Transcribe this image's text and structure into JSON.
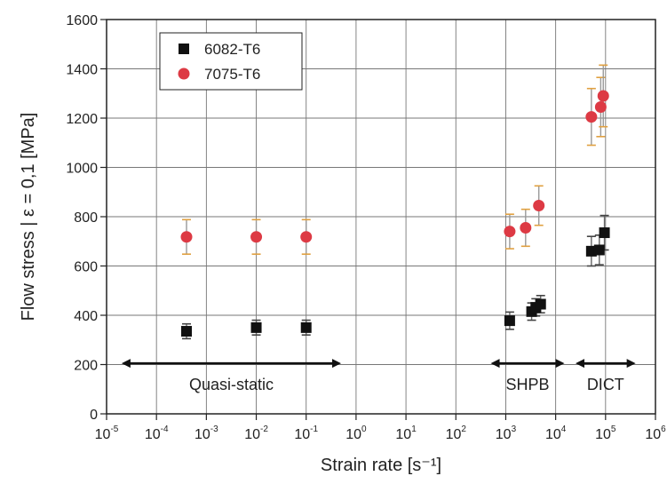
{
  "chart_data": {
    "type": "scatter",
    "title": "",
    "xlabel": "Strain rate [s⁻¹]",
    "ylabel": "Flow stress | ε = 0,1 [MPa]",
    "xscale": "log",
    "xlim_exp": [
      -5,
      6
    ],
    "ylim": [
      0,
      1600
    ],
    "grid": true,
    "legend_position": "top-left",
    "x_tick_labels": [
      {
        "base": "10",
        "exp": "-5"
      },
      {
        "base": "10",
        "exp": "-4"
      },
      {
        "base": "10",
        "exp": "-3"
      },
      {
        "base": "10",
        "exp": "-2"
      },
      {
        "base": "10",
        "exp": "-1"
      },
      {
        "base": "10",
        "exp": "0"
      },
      {
        "base": "10",
        "exp": "1"
      },
      {
        "base": "10",
        "exp": "2"
      },
      {
        "base": "10",
        "exp": "3"
      },
      {
        "base": "10",
        "exp": "4"
      },
      {
        "base": "10",
        "exp": "5"
      },
      {
        "base": "10",
        "exp": "6"
      }
    ],
    "y_ticks": [
      0,
      200,
      400,
      600,
      800,
      1000,
      1200,
      1400,
      1600
    ],
    "series": [
      {
        "name": "6082-T6",
        "color": "#111111",
        "marker": "square",
        "points": [
          {
            "x": 0.0004,
            "y": 335,
            "err": 30
          },
          {
            "x": 0.01,
            "y": 350,
            "err": 30
          },
          {
            "x": 0.1,
            "y": 350,
            "err": 30
          },
          {
            "x": 1200,
            "y": 378,
            "err": 35
          },
          {
            "x": 3300,
            "y": 415,
            "err": 35
          },
          {
            "x": 4000,
            "y": 432,
            "err": 35
          },
          {
            "x": 5000,
            "y": 445,
            "err": 35
          },
          {
            "x": 52000,
            "y": 660,
            "err": 60
          },
          {
            "x": 75000,
            "y": 665,
            "err": 60
          },
          {
            "x": 95000,
            "y": 735,
            "err": 70
          }
        ]
      },
      {
        "name": "7075-T6",
        "color": "#dd3a44",
        "marker": "circle",
        "points": [
          {
            "x": 0.0004,
            "y": 718,
            "err": 70
          },
          {
            "x": 0.01,
            "y": 718,
            "err": 70
          },
          {
            "x": 0.1,
            "y": 718,
            "err": 70
          },
          {
            "x": 1200,
            "y": 740,
            "err": 70
          },
          {
            "x": 2500,
            "y": 755,
            "err": 75
          },
          {
            "x": 4600,
            "y": 845,
            "err": 80
          },
          {
            "x": 52000,
            "y": 1205,
            "err": 115
          },
          {
            "x": 80000,
            "y": 1245,
            "err": 120
          },
          {
            "x": 90000,
            "y": 1290,
            "err": 125
          }
        ]
      }
    ],
    "annotations": [
      {
        "text": "Quasi-static",
        "x_from": 2e-05,
        "x_to": 0.5,
        "y": 205
      },
      {
        "text": "SHPB",
        "x_from": 500,
        "x_to": 15000,
        "y": 205
      },
      {
        "text": "DICT",
        "x_from": 25000,
        "x_to": 400000,
        "y": 205
      }
    ]
  }
}
